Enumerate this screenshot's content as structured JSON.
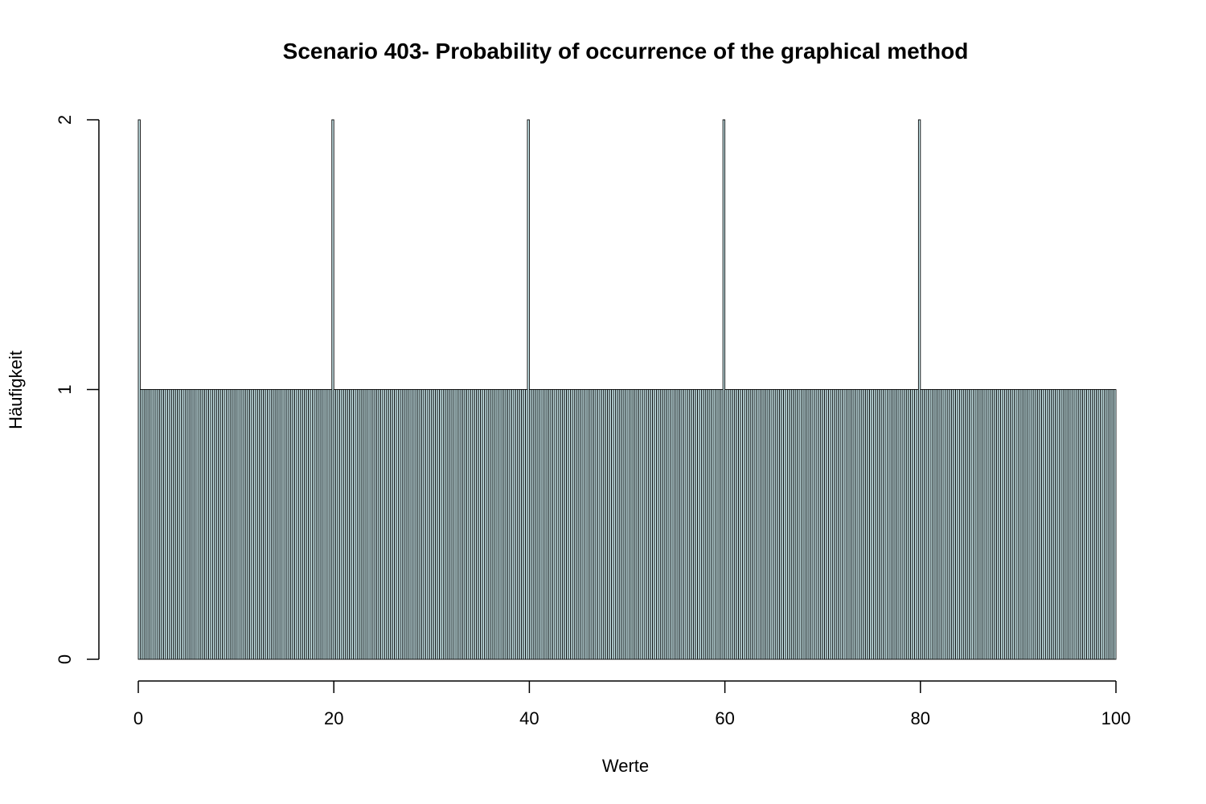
{
  "chart_data": {
    "type": "bar",
    "title": "Scenario 403- Probability of occurrence of the graphical method",
    "xlabel": "Werte",
    "ylabel": "Häufigkeit",
    "xlim": [
      0,
      100
    ],
    "ylim": [
      0,
      2
    ],
    "bin_width": 0.2,
    "xticks": [
      "0",
      "20",
      "40",
      "60",
      "80",
      "100"
    ],
    "yticks": [
      "0",
      "1",
      "2"
    ],
    "bar_fill": "#cfeef2",
    "bar_stroke": "#000000",
    "default_count": 1,
    "peaks": [
      {
        "x0": 0.0,
        "x1": 0.2,
        "count": 2
      },
      {
        "x0": 19.8,
        "x1": 20.0,
        "count": 2
      },
      {
        "x0": 39.8,
        "x1": 40.0,
        "count": 2
      },
      {
        "x0": 59.8,
        "x1": 60.0,
        "count": 2
      },
      {
        "x0": 79.8,
        "x1": 80.0,
        "count": 2
      }
    ],
    "grid": false,
    "legend": "none"
  }
}
